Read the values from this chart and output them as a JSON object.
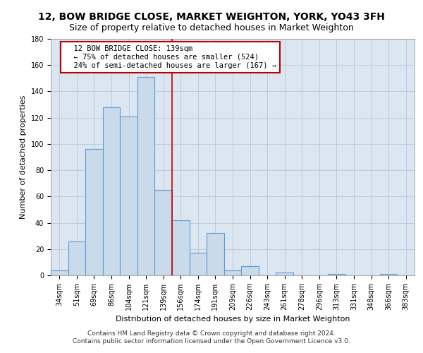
{
  "title1": "12, BOW BRIDGE CLOSE, MARKET WEIGHTON, YORK, YO43 3FH",
  "title2": "Size of property relative to detached houses in Market Weighton",
  "xlabel": "Distribution of detached houses by size in Market Weighton",
  "ylabel": "Number of detached properties",
  "footnote1": "Contains HM Land Registry data © Crown copyright and database right 2024.",
  "footnote2": "Contains public sector information licensed under the Open Government Licence v3.0.",
  "categories": [
    "34sqm",
    "51sqm",
    "69sqm",
    "86sqm",
    "104sqm",
    "121sqm",
    "139sqm",
    "156sqm",
    "174sqm",
    "191sqm",
    "209sqm",
    "226sqm",
    "243sqm",
    "261sqm",
    "278sqm",
    "296sqm",
    "313sqm",
    "331sqm",
    "348sqm",
    "366sqm",
    "383sqm"
  ],
  "values": [
    4,
    26,
    96,
    128,
    121,
    151,
    65,
    42,
    17,
    32,
    4,
    7,
    0,
    2,
    0,
    0,
    1,
    0,
    0,
    1,
    0
  ],
  "bar_color": "#c9daea",
  "bar_edge_color": "#5b9bd5",
  "highlight_index": 6,
  "highlight_line_color": "#c00000",
  "annotation_text": "  12 BOW BRIDGE CLOSE: 139sqm\n  ← 75% of detached houses are smaller (524)\n  24% of semi-detached houses are larger (167) →",
  "annotation_box_color": "#ffffff",
  "annotation_box_edge": "#c00000",
  "ylim": [
    0,
    180
  ],
  "yticks": [
    0,
    20,
    40,
    60,
    80,
    100,
    120,
    140,
    160,
    180
  ],
  "bg_color": "#ffffff",
  "plot_bg_color": "#dce6f1",
  "grid_color": "#b8c8d8",
  "title1_fontsize": 10,
  "title2_fontsize": 9,
  "axis_label_fontsize": 8,
  "tick_fontsize": 7,
  "footnote_fontsize": 6.5,
  "annotation_fontsize": 7.5
}
